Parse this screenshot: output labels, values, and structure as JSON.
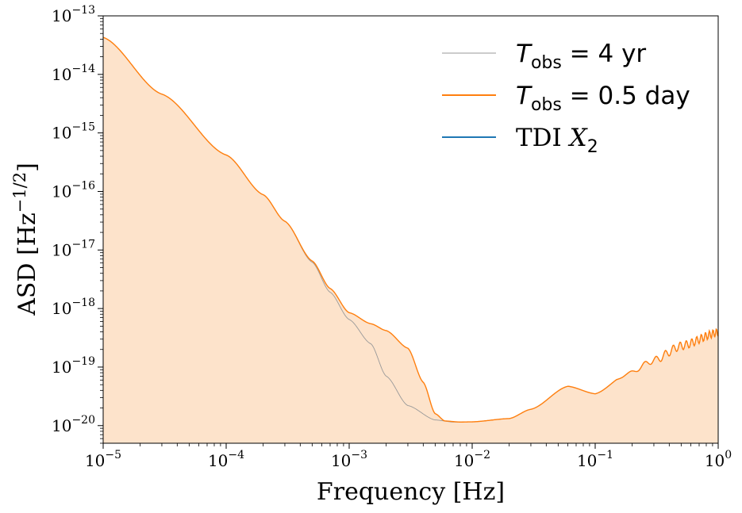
{
  "chart_data": {
    "type": "line",
    "xscale": "log",
    "yscale": "log",
    "xlabel": "Frequency [Hz]",
    "ylabel": {
      "main": "ASD [Hz",
      "exponent": "−1/2",
      "close": "]"
    },
    "xlim": [
      1e-05,
      1.0
    ],
    "ylim": [
      5e-21,
      1e-13
    ],
    "x_ticks": [
      {
        "base": "10",
        "exp": "−5"
      },
      {
        "base": "10",
        "exp": "−4"
      },
      {
        "base": "10",
        "exp": "−3"
      },
      {
        "base": "10",
        "exp": "−2"
      },
      {
        "base": "10",
        "exp": "−1"
      },
      {
        "base": "10",
        "exp": "0"
      }
    ],
    "y_ticks": [
      {
        "base": "10",
        "exp": "−20"
      },
      {
        "base": "10",
        "exp": "−19"
      },
      {
        "base": "10",
        "exp": "−18"
      },
      {
        "base": "10",
        "exp": "−17"
      },
      {
        "base": "10",
        "exp": "−16"
      },
      {
        "base": "10",
        "exp": "−15"
      },
      {
        "base": "10",
        "exp": "−14"
      },
      {
        "base": "10",
        "exp": "−13"
      }
    ],
    "legend_position": "top-right",
    "legend": [
      {
        "label_main": "T",
        "label_sub": "obs",
        "label_rest": " = 4 yr",
        "color": "#999999"
      },
      {
        "label_main": "T",
        "label_sub": "obs",
        "label_rest": " = 0.5 day",
        "color": "#ff7f0e"
      },
      {
        "label_main": "TDI X",
        "label_sub": "2",
        "label_rest": "",
        "color": "#1f77b4"
      }
    ],
    "series": [
      {
        "name": "Tobs = 4 yr",
        "color": "#999999",
        "points": [
          [
            1e-05,
            4.3e-14
          ],
          [
            3e-05,
            4.6e-15
          ],
          [
            0.0001,
            4.2e-16
          ],
          [
            0.0002,
            8.8e-17
          ],
          [
            0.0003,
            3.1e-17
          ],
          [
            0.0005,
            6.2e-18
          ],
          [
            0.0007,
            1.9e-18
          ],
          [
            0.001,
            6.5e-19
          ],
          [
            0.0015,
            2.5e-19
          ],
          [
            0.002,
            7e-20
          ],
          [
            0.003,
            2.2e-20
          ],
          [
            0.005,
            1.25e-20
          ],
          [
            0.007,
            1.15e-20
          ],
          [
            0.01,
            1.16e-20
          ],
          [
            0.02,
            1.32e-20
          ],
          [
            0.03,
            1.9e-20
          ],
          [
            0.06,
            4.7e-20
          ],
          [
            0.1,
            3.5e-20
          ],
          [
            0.18,
            7.5e-20
          ],
          [
            0.3,
            1.3e-19
          ],
          [
            0.5,
            2.3e-19
          ],
          [
            1,
            3.9e-19
          ]
        ]
      },
      {
        "name": "Tobs = 0.5 day",
        "color": "#ff7f0e",
        "points": [
          [
            1e-05,
            4.3e-14
          ],
          [
            3e-05,
            4.6e-15
          ],
          [
            0.0001,
            4.2e-16
          ],
          [
            0.0002,
            8.8e-17
          ],
          [
            0.0003,
            3.1e-17
          ],
          [
            0.0005,
            6.5e-18
          ],
          [
            0.0007,
            2.2e-18
          ],
          [
            0.001,
            8.5e-19
          ],
          [
            0.0015,
            5.5e-19
          ],
          [
            0.002,
            4.2e-19
          ],
          [
            0.003,
            2.1e-19
          ],
          [
            0.004,
            5.5e-20
          ],
          [
            0.005,
            1.6e-20
          ],
          [
            0.006,
            1.2e-20
          ],
          [
            0.008,
            1.15e-20
          ],
          [
            0.01,
            1.16e-20
          ],
          [
            0.02,
            1.32e-20
          ],
          [
            0.03,
            1.9e-20
          ],
          [
            0.06,
            4.7e-20
          ],
          [
            0.1,
            3.5e-20
          ],
          [
            0.18,
            7.5e-20
          ],
          [
            0.3,
            1.3e-19
          ],
          [
            0.5,
            2.3e-19
          ],
          [
            1,
            3.9e-19
          ]
        ]
      },
      {
        "name": "TDI X2",
        "color": "#1f77b4",
        "points": []
      }
    ],
    "fill": {
      "under_series": "Tobs = 0.5 day",
      "color": "#fde3cb"
    }
  }
}
